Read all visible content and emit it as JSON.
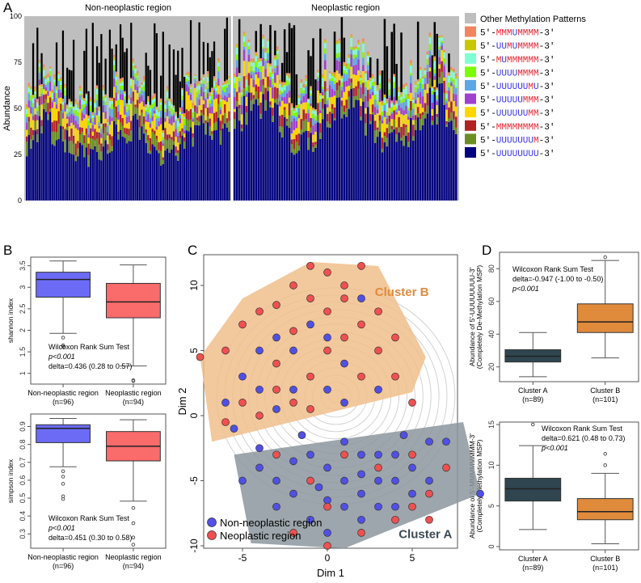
{
  "panels": {
    "a": "A",
    "b": "B",
    "c": "C",
    "d": "D"
  },
  "chart_data": [
    {
      "type": "bar",
      "id": "A",
      "stacked": true,
      "ylabel": "Abundance",
      "ylim": [
        0,
        100
      ],
      "yticks": [
        0,
        25,
        50,
        75,
        100
      ],
      "groups": [
        {
          "name": "Non-neoplastic region",
          "n": 96
        },
        {
          "name": "Neoplastic region",
          "n": 94
        }
      ],
      "legend": [
        {
          "label": "Other Methylation Patterns",
          "color": "#bebebe",
          "pattern": ""
        },
        {
          "label": "5'-MMMUMMMM-3'",
          "color": "#f4845f",
          "pattern": "MMMUMMMM"
        },
        {
          "label": "5'-UUMUMMMM-3'",
          "color": "#c8c800",
          "pattern": "UUMUMMMM"
        },
        {
          "label": "5'-MUMMMMMM-3'",
          "color": "#7fffd4",
          "pattern": "MUMMMMMM"
        },
        {
          "label": "5'-UUUUMMMM-3'",
          "color": "#7cfc00",
          "pattern": "UUUUMMMM"
        },
        {
          "label": "5'-UUUUUUMU-3'",
          "color": "#5ca8e6",
          "pattern": "UUUUUUMU"
        },
        {
          "label": "5'-UUUUUMMM-3'",
          "color": "#a040d0",
          "pattern": "UUUUUMMM"
        },
        {
          "label": "5'-UUUUUUMM-3'",
          "color": "#ffd700",
          "pattern": "UUUUUUMM"
        },
        {
          "label": "5'-MMMMMMMM-3'",
          "color": "#b22222",
          "pattern": "MMMMMMMM"
        },
        {
          "label": "5'-UUUUUUUM-3'",
          "color": "#6b8e23",
          "pattern": "UUUUUUUM"
        },
        {
          "label": "5'-UUUUUUUU-3'",
          "color": "#000080",
          "pattern": "UUUUUUUU"
        }
      ],
      "mean_composition_bottom_up": {
        "Non-neoplastic region": [
          32,
          5,
          4,
          6,
          3,
          3,
          2,
          2,
          1,
          1,
          41
        ],
        "Neoplastic region": [
          42,
          4,
          4,
          5,
          4,
          3,
          2,
          3,
          1,
          1,
          31
        ]
      }
    },
    {
      "type": "box",
      "id": "B-shannon",
      "ylabel": "shannon index",
      "ylim": [
        0.75,
        3.7
      ],
      "yticks": [
        1.0,
        1.5,
        2.0,
        2.5,
        3.0,
        3.5
      ],
      "categories": [
        "Non-neoplastic region",
        "Neoplastic region"
      ],
      "ns": [
        "(n=96)",
        "(n=94)"
      ],
      "colors": [
        "#6b6bf5",
        "#fa6b6b"
      ],
      "boxes": [
        {
          "min": 1.93,
          "q1": 2.77,
          "median": 3.18,
          "q3": 3.35,
          "max": 3.61,
          "outliers": [
            1.83,
            1.65,
            1.62
          ]
        },
        {
          "min": 1.17,
          "q1": 2.29,
          "median": 2.66,
          "q3": 3.09,
          "max": 3.52,
          "outliers": [
            0.84,
            0.82
          ]
        }
      ],
      "annotation": [
        "Wilcoxon Rank Sum Test",
        "p<0.001",
        "delta=0.436 (0.28 to 0.57)"
      ]
    },
    {
      "type": "box",
      "id": "B-simpson",
      "ylabel": "simpson index",
      "ylim": [
        0.22,
        0.97
      ],
      "yticks": [
        0.3,
        0.4,
        0.5,
        0.6,
        0.7,
        0.8,
        0.9
      ],
      "categories": [
        "Non-neoplastic region",
        "Neoplastic region"
      ],
      "ns": [
        "(n=96)",
        "(n=94)"
      ],
      "colors": [
        "#6b6bf5",
        "#fa6b6b"
      ],
      "boxes": [
        {
          "min": 0.675,
          "q1": 0.81,
          "median": 0.89,
          "q3": 0.91,
          "max": 0.945,
          "outliers": [
            0.65,
            0.62,
            0.58,
            0.51,
            0.495
          ]
        },
        {
          "min": 0.483,
          "q1": 0.708,
          "median": 0.79,
          "q3": 0.872,
          "max": 0.938,
          "outliers": [
            0.445,
            0.36,
            0.28,
            0.24
          ]
        }
      ],
      "annotation": [
        "Wilcoxon Rank Sum Test",
        "p<0.001",
        "delta=0.451 (0.30 to 0.58)"
      ]
    },
    {
      "type": "scatter",
      "id": "C",
      "xlabel": "Dim 1",
      "ylabel": "Dim 2",
      "xlim": [
        -8.5,
        9.5
      ],
      "ylim": [
        -10.5,
        12
      ],
      "xticks": [
        -5,
        0,
        5
      ],
      "yticks": [
        -10,
        -5,
        0,
        5,
        10
      ],
      "clusters": [
        {
          "name": "Cluster B",
          "color": "#f0be8c",
          "label_color": "#e08a3c",
          "hull": [
            [
              -7.5,
              4.5
            ],
            [
              -5,
              9
            ],
            [
              -1,
              11.8
            ],
            [
              3,
              11.5
            ],
            [
              5.8,
              4.5
            ],
            [
              5,
              1.8
            ],
            [
              -6.8,
              -2
            ]
          ]
        },
        {
          "name": "Cluster A",
          "color": "#8c979e",
          "label_color": "#3c4b55",
          "hull": [
            [
              -5.5,
              -3
            ],
            [
              8,
              -0.5
            ],
            [
              9,
              -6
            ],
            [
              1,
              -10.2
            ],
            [
              -4.5,
              -9.8
            ]
          ]
        }
      ],
      "series": [
        {
          "name": "Non-neoplastic region",
          "color": "#5050e6",
          "points": [
            [
              -6,
              1
            ],
            [
              -5.5,
              -1
            ],
            [
              -5,
              3
            ],
            [
              -4,
              5
            ],
            [
              -3,
              0.5
            ],
            [
              -2,
              2
            ],
            [
              -1,
              7
            ],
            [
              0,
              6
            ],
            [
              1,
              4
            ],
            [
              2,
              9
            ],
            [
              -4,
              -4
            ],
            [
              -3,
              -5
            ],
            [
              -2,
              -6
            ],
            [
              -1,
              -3
            ],
            [
              0,
              -4
            ],
            [
              1,
              -5
            ],
            [
              2,
              -6
            ],
            [
              3,
              -3
            ],
            [
              4,
              -5
            ],
            [
              5,
              -4
            ],
            [
              6,
              -2
            ],
            [
              -1,
              -8
            ],
            [
              0,
              -9
            ],
            [
              2,
              -8
            ],
            [
              3,
              -7
            ],
            [
              4,
              -7
            ],
            [
              -2,
              -3.5
            ],
            [
              1,
              -2
            ],
            [
              2,
              -3
            ],
            [
              3,
              -5
            ],
            [
              5,
              -6
            ],
            [
              6,
              -5
            ],
            [
              -3,
              -7
            ],
            [
              1,
              -7
            ],
            [
              7,
              -2
            ],
            [
              9,
              -6
            ],
            [
              -5,
              -5
            ],
            [
              0,
              -6.5
            ],
            [
              2,
              -4.5
            ],
            [
              4,
              -3
            ],
            [
              -4,
              2
            ],
            [
              -3,
              6
            ],
            [
              0,
              2
            ],
            [
              1,
              1
            ],
            [
              3,
              2
            ],
            [
              -2,
              5
            ],
            [
              -1.5,
              -1.5
            ],
            [
              -0.5,
              -5.5
            ],
            [
              4.5,
              -1.5
            ],
            [
              -4,
              -2.5
            ]
          ]
        },
        {
          "name": "Neoplastic region",
          "color": "#f05050",
          "points": [
            [
              -7.5,
              4.5
            ],
            [
              -6,
              5
            ],
            [
              -5,
              7
            ],
            [
              -4,
              8
            ],
            [
              -3,
              4
            ],
            [
              -2,
              10
            ],
            [
              -1,
              11.5
            ],
            [
              0,
              11
            ],
            [
              1,
              9
            ],
            [
              2,
              7
            ],
            [
              3,
              5
            ],
            [
              4,
              3
            ],
            [
              5,
              1
            ],
            [
              -1,
              3
            ],
            [
              0,
              5
            ],
            [
              1,
              6
            ],
            [
              -2,
              6.5
            ],
            [
              -3,
              2
            ],
            [
              -4,
              0
            ],
            [
              -5,
              1
            ],
            [
              2,
              3
            ],
            [
              3,
              8
            ],
            [
              -1,
              9
            ],
            [
              0,
              8
            ],
            [
              1,
              10
            ],
            [
              -2,
              1
            ],
            [
              3,
              -4
            ],
            [
              4,
              -8
            ],
            [
              5,
              -7
            ],
            [
              6,
              -8
            ],
            [
              -1,
              -5
            ],
            [
              0,
              -7
            ],
            [
              2,
              -9
            ],
            [
              5,
              -3
            ],
            [
              1,
              -3
            ],
            [
              -3,
              -3
            ],
            [
              7,
              -4
            ],
            [
              6,
              -6
            ],
            [
              0,
              -10
            ],
            [
              -2,
              -9
            ],
            [
              -6,
              -0.5
            ],
            [
              -1,
              0.5
            ],
            [
              2,
              11.5
            ],
            [
              4,
              6
            ],
            [
              -3,
              8.5
            ]
          ]
        }
      ],
      "legend": [
        "Non-neoplastic region",
        "Neoplastic region"
      ]
    },
    {
      "type": "box",
      "id": "D-top",
      "ylabel": [
        "Abundance of 5'-UUUUUUUU-3'",
        "(Completely De-Methylation MSP)"
      ],
      "ylim": [
        11,
        90
      ],
      "yticks": [
        20,
        40,
        60,
        80
      ],
      "categories": [
        "Cluster A",
        "Cluster B"
      ],
      "ns": [
        "(n=89)",
        "(n=101)"
      ],
      "colors": [
        "#2f4650",
        "#e08a3c"
      ],
      "boxes": [
        {
          "min": 14,
          "q1": 23,
          "median": 26.5,
          "q3": 30.5,
          "max": 41,
          "outliers": []
        },
        {
          "min": 25.5,
          "q1": 41,
          "median": 47.5,
          "q3": 58.5,
          "max": 85,
          "outliers": [
            87
          ]
        }
      ],
      "annotation": [
        "Wilcoxon Rank Sum Test",
        "delta=-0.947 (-1.00 to -0.50)",
        "p<0.001"
      ]
    },
    {
      "type": "box",
      "id": "D-bottom",
      "ylabel": [
        "Abundance of 5'-MMMMMMMM-3'",
        "(Completely Methylation MSP)"
      ],
      "ylim": [
        -0.4,
        15.3
      ],
      "yticks": [
        0,
        5,
        10,
        15
      ],
      "categories": [
        "Cluster A",
        "Cluster B"
      ],
      "ns": [
        "(n=89)",
        "(n=101)"
      ],
      "colors": [
        "#2f4650",
        "#e08a3c"
      ],
      "boxes": [
        {
          "min": 2.1,
          "q1": 5.6,
          "median": 7.1,
          "q3": 8.4,
          "max": 12.4,
          "outliers": [
            15
          ]
        },
        {
          "min": 0.35,
          "q1": 3.3,
          "median": 4.3,
          "q3": 5.9,
          "max": 9,
          "outliers": [
            10,
            11.4
          ]
        }
      ],
      "annotation": [
        "Wilcoxon Rank Sum Test",
        "delta=0.621 (0.48 to 0.73)",
        "p<0.001"
      ]
    }
  ]
}
